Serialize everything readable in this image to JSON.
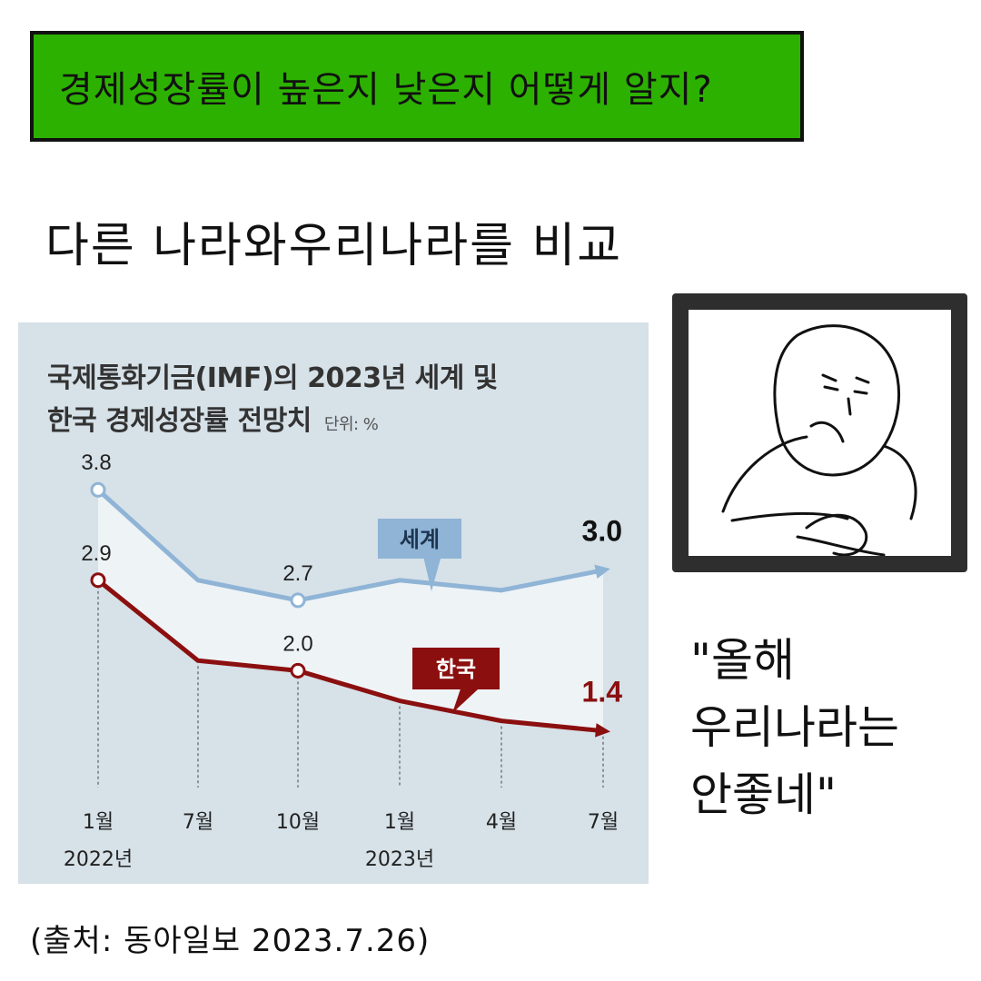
{
  "banner": {
    "text": "경제성장률이 높은지 낮은지 어떻게 알지?"
  },
  "subtitle": "다른 나라와우리나라를 비교",
  "quote": {
    "lines": [
      "\"올해",
      "우리나라는",
      "안좋네\""
    ]
  },
  "source": "(출처: 동아일보 2023.7.26)",
  "colors": {
    "banner": "#2db100",
    "world": "#8fb4d6",
    "korea": "#8b0f0f",
    "panel": "#d6e1e8"
  },
  "icons": {
    "illustration": "thinking-person-illustration"
  },
  "chart_data": {
    "type": "line",
    "title_line1": "국제통화기금(IMF)의 2023년 세계 및",
    "title_line2": "한국 경제성장률 전망치",
    "unit": "단위: %",
    "categories": [
      "1월",
      "7월",
      "10월",
      "1월",
      "4월",
      "7월"
    ],
    "year_labels": [
      "2022년",
      "",
      "",
      "2023년",
      "",
      ""
    ],
    "series": [
      {
        "name": "세계",
        "color": "#8fb4d6",
        "values": [
          3.8,
          2.9,
          2.7,
          2.9,
          2.8,
          3.0
        ],
        "labels": [
          "3.8",
          "",
          "2.7",
          "",
          "",
          "3.0"
        ]
      },
      {
        "name": "한국",
        "color": "#8b0f0f",
        "values": [
          2.9,
          2.1,
          2.0,
          1.7,
          1.5,
          1.4
        ],
        "labels": [
          "2.9",
          "",
          "2.0",
          "",
          "",
          "1.4"
        ]
      }
    ],
    "ylim": [
      0.9,
      4.2
    ]
  }
}
